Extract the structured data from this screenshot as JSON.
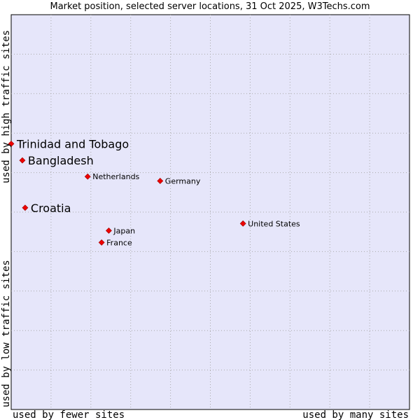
{
  "title": "Market position, selected server locations, 31 Oct 2025, W3Techs.com",
  "colors": {
    "plot_background": "#e6e6fa",
    "grid": "#aaaaaa",
    "marker": "#ee0000"
  },
  "chart_data": {
    "type": "scatter",
    "title": "Market position, selected server locations, 31 Oct 2025, W3Techs.com",
    "xlabel_left": "used by fewer sites",
    "xlabel_right": "used by many sites",
    "ylabel_bottom": "used by low traffic sites",
    "ylabel_top": "used by high traffic sites",
    "xlim": [
      0,
      100
    ],
    "ylim": [
      0,
      100
    ],
    "grid": true,
    "points": [
      {
        "label": "Trinidad and Tobago",
        "x": 0.0,
        "y": 67.3,
        "size": "large"
      },
      {
        "label": "Bangladesh",
        "x": 2.8,
        "y": 63.1,
        "size": "large"
      },
      {
        "label": "Netherlands",
        "x": 19.2,
        "y": 59.0,
        "size": "small"
      },
      {
        "label": "Germany",
        "x": 37.4,
        "y": 57.9,
        "size": "small"
      },
      {
        "label": "Croatia",
        "x": 3.5,
        "y": 51.1,
        "size": "large"
      },
      {
        "label": "United States",
        "x": 58.2,
        "y": 47.1,
        "size": "small"
      },
      {
        "label": "Japan",
        "x": 24.5,
        "y": 45.3,
        "size": "small"
      },
      {
        "label": "France",
        "x": 22.7,
        "y": 42.3,
        "size": "small"
      }
    ]
  }
}
